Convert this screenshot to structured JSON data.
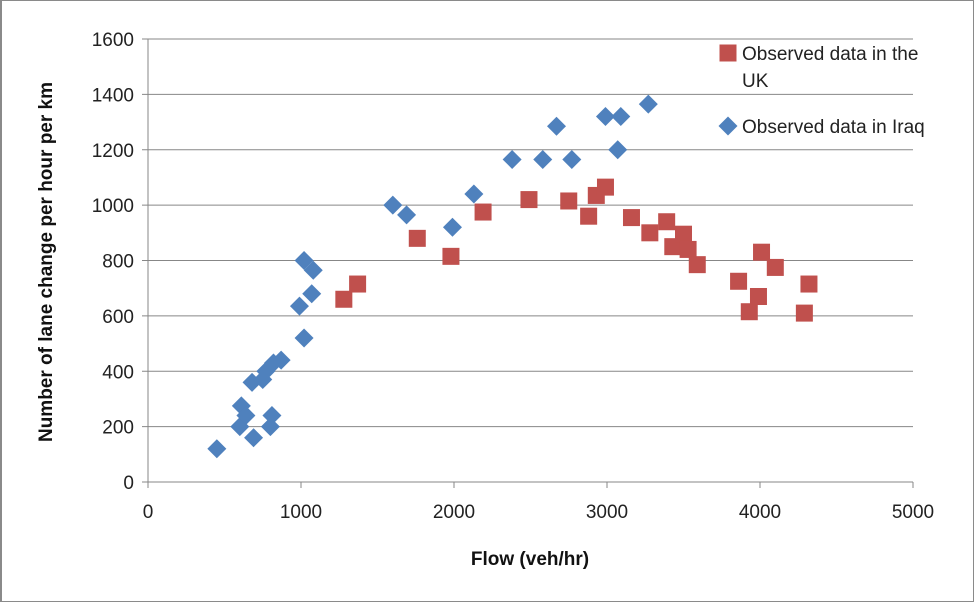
{
  "chart_data": {
    "type": "scatter",
    "xlabel": "Flow (veh/hr)",
    "ylabel": "Number of lane change per hour per km",
    "xlim": [
      0,
      5000
    ],
    "ylim": [
      0,
      1600
    ],
    "xticks": [
      0,
      1000,
      2000,
      3000,
      4000,
      5000
    ],
    "yticks": [
      0,
      200,
      400,
      600,
      800,
      1000,
      1200,
      1400,
      1600
    ],
    "grid": "horizontal",
    "legend_position": "right",
    "series": [
      {
        "name": "Observed data in the UK",
        "legend_lines": [
          "Observed data in the",
          "UK"
        ],
        "marker": "square",
        "color": "#C0504D",
        "points": [
          [
            1280,
            660
          ],
          [
            1370,
            715
          ],
          [
            1760,
            880
          ],
          [
            1980,
            815
          ],
          [
            2190,
            975
          ],
          [
            2490,
            1020
          ],
          [
            2750,
            1015
          ],
          [
            2880,
            960
          ],
          [
            2930,
            1035
          ],
          [
            2990,
            1065
          ],
          [
            3160,
            955
          ],
          [
            3280,
            900
          ],
          [
            3390,
            940
          ],
          [
            3430,
            850
          ],
          [
            3500,
            895
          ],
          [
            3530,
            840
          ],
          [
            3590,
            785
          ],
          [
            3860,
            725
          ],
          [
            3930,
            615
          ],
          [
            3990,
            670
          ],
          [
            4010,
            830
          ],
          [
            4100,
            775
          ],
          [
            4290,
            610
          ],
          [
            4320,
            715
          ]
        ]
      },
      {
        "name": "Observed data in Iraq",
        "legend_lines": [
          "Observed data in Iraq"
        ],
        "marker": "diamond",
        "color": "#4F81BD",
        "points": [
          [
            450,
            120
          ],
          [
            600,
            200
          ],
          [
            610,
            275
          ],
          [
            640,
            240
          ],
          [
            680,
            360
          ],
          [
            690,
            160
          ],
          [
            750,
            370
          ],
          [
            770,
            400
          ],
          [
            800,
            200
          ],
          [
            810,
            240
          ],
          [
            820,
            430
          ],
          [
            870,
            440
          ],
          [
            990,
            635
          ],
          [
            1020,
            520
          ],
          [
            1020,
            800
          ],
          [
            1070,
            680
          ],
          [
            1080,
            765
          ],
          [
            1600,
            1000
          ],
          [
            1690,
            965
          ],
          [
            1990,
            920
          ],
          [
            2130,
            1040
          ],
          [
            2380,
            1165
          ],
          [
            2580,
            1165
          ],
          [
            2670,
            1285
          ],
          [
            2770,
            1165
          ],
          [
            2990,
            1320
          ],
          [
            3070,
            1200
          ],
          [
            3090,
            1320
          ],
          [
            3270,
            1365
          ]
        ]
      }
    ]
  }
}
